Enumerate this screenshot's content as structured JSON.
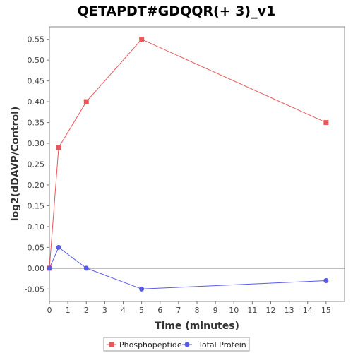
{
  "chart_data": {
    "type": "line",
    "title": "QETAPDT#GDQQR(+ 3)_v1",
    "xlabel": "Time (minutes)",
    "ylabel": "log2(dDAVP/Control)",
    "xlim": [
      0,
      16
    ],
    "ylim": [
      -0.08,
      0.58
    ],
    "x_ticks": [
      0,
      1,
      2,
      3,
      4,
      5,
      6,
      7,
      8,
      9,
      10,
      11,
      12,
      13,
      14,
      15
    ],
    "y_ticks": [
      -0.05,
      0.0,
      0.05,
      0.1,
      0.15,
      0.2,
      0.25,
      0.3,
      0.35,
      0.4,
      0.45,
      0.5,
      0.55
    ],
    "grid": false,
    "zero_line": true,
    "legend_position": "bottom",
    "series": [
      {
        "name": "Phosphopeptide",
        "marker": "square",
        "color": "#e8585a",
        "x": [
          0,
          0.5,
          2,
          5,
          15
        ],
        "y": [
          0.0,
          0.29,
          0.4,
          0.55,
          0.35
        ]
      },
      {
        "name": "Total Protein",
        "marker": "circle",
        "color": "#5a5ae8",
        "x": [
          0,
          0.5,
          2,
          5,
          15
        ],
        "y": [
          0.0,
          0.05,
          0.0,
          -0.05,
          -0.03
        ]
      }
    ]
  }
}
